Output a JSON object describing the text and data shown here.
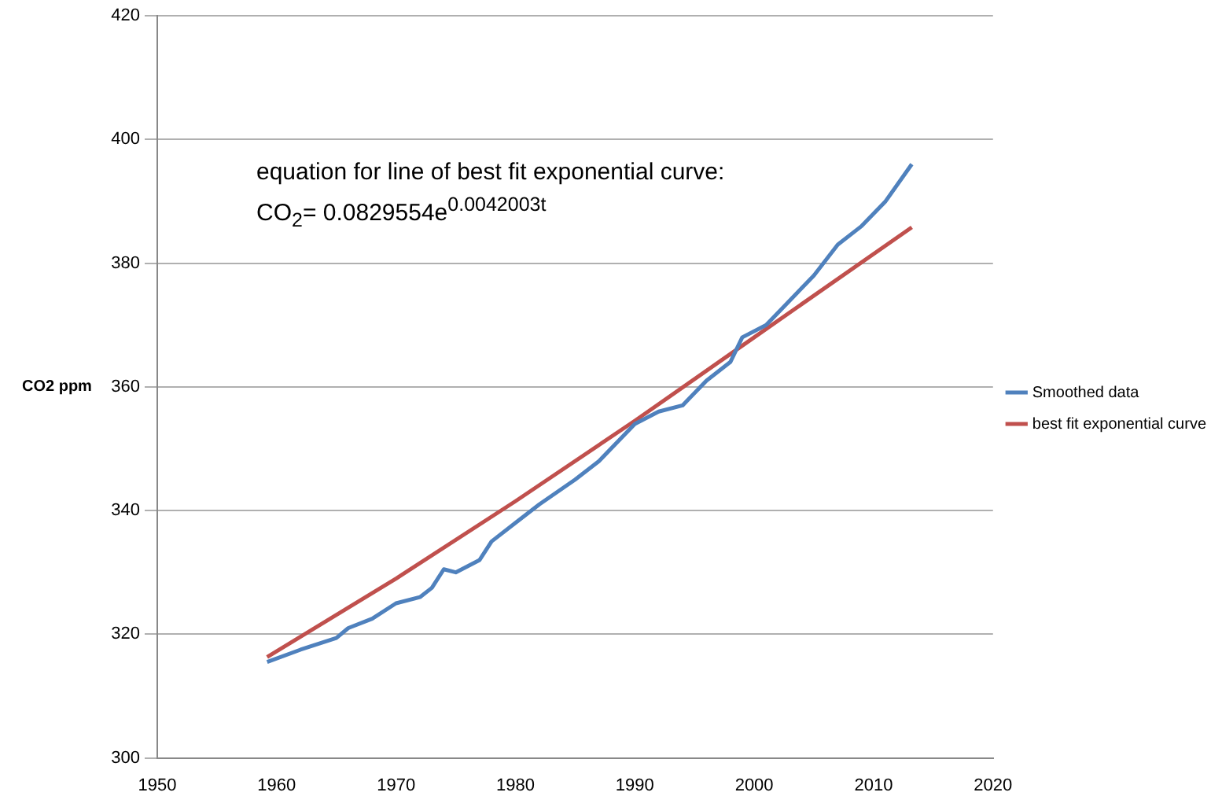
{
  "chart_data": {
    "type": "line",
    "ylabel": "CO2 ppm",
    "annotations": [
      "equation for line of best fit exponential curve:\nCO$_{2}$= 0.0829554e$^{0.0042003t}$"
    ],
    "xlim": [
      1950,
      2020
    ],
    "xticks": [
      1950,
      1960,
      1970,
      1980,
      1990,
      2000,
      2010,
      2020
    ],
    "ylim": [
      300,
      420
    ],
    "yticks": [
      300,
      320,
      340,
      360,
      380,
      400,
      420
    ],
    "grid": "y",
    "legend": "right",
    "marker": "none",
    "line_style": "solid",
    "series": [
      {
        "name": "Smoothed data",
        "color": "#4f81bd",
        "x": [
          1959.2,
          1962,
          1965,
          1966,
          1968,
          1970,
          1972,
          1973,
          1974,
          1975,
          1977,
          1978,
          1980,
          1982,
          1985,
          1987,
          1989,
          1990,
          1992,
          1994,
          1996,
          1998,
          1999,
          2001,
          2003,
          2005,
          2007,
          2009,
          2011,
          2013.2
        ],
        "values": [
          315.5,
          317.5,
          319.4,
          321,
          322.5,
          325,
          326,
          327.5,
          330.5,
          330,
          332,
          335,
          338,
          341,
          345,
          348,
          352,
          354,
          356,
          357,
          361,
          364,
          368,
          370,
          374,
          378,
          383,
          386,
          390,
          396
        ]
      },
      {
        "name": "best fit exponential curve",
        "color": "#c0504d",
        "x": [
          1959.2,
          1970,
          1980,
          1990,
          2000,
          2013.2
        ],
        "values": [
          316.3,
          329,
          341.5,
          354.5,
          368,
          385.8
        ]
      }
    ]
  }
}
